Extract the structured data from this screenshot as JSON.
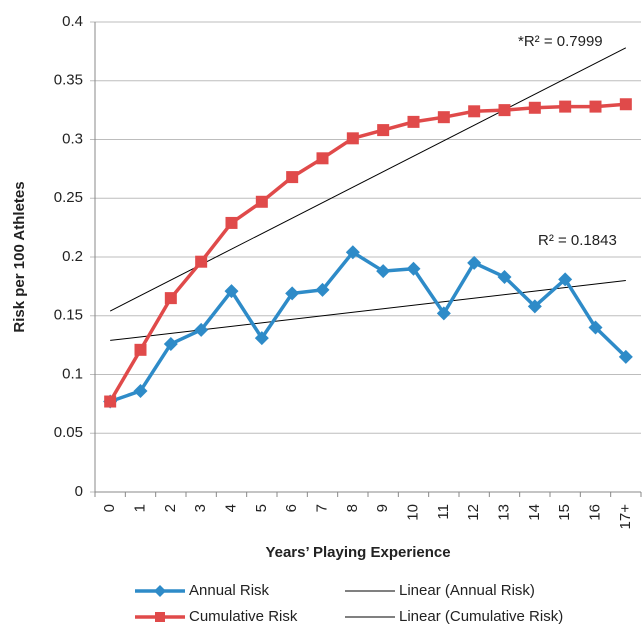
{
  "chart_data": {
    "type": "line",
    "y_label": "Risk per 100 Athletes",
    "x_label": "Years’ Playing Experience",
    "categories": [
      "0",
      "1",
      "2",
      "3",
      "4",
      "5",
      "6",
      "7",
      "8",
      "9",
      "10",
      "11",
      "12",
      "13",
      "14",
      "15",
      "16",
      "17+"
    ],
    "series": [
      {
        "name": "Annual Risk",
        "color": "#2e8bc8",
        "marker": "diamond",
        "values": [
          0.077,
          0.086,
          0.126,
          0.138,
          0.171,
          0.131,
          0.169,
          0.172,
          0.204,
          0.188,
          0.19,
          0.152,
          0.195,
          0.183,
          0.158,
          0.181,
          0.14,
          0.115
        ]
      },
      {
        "name": "Cumulative Risk",
        "color": "#e04a4a",
        "marker": "square",
        "values": [
          0.077,
          0.121,
          0.165,
          0.196,
          0.229,
          0.247,
          0.268,
          0.284,
          0.301,
          0.308,
          0.315,
          0.319,
          0.324,
          0.325,
          0.327,
          0.328,
          0.328,
          0.33
        ]
      }
    ],
    "trendlines": [
      {
        "name": "Linear (Annual Risk)",
        "color": "#000000",
        "values": [
          0.129,
          0.18
        ],
        "annotation": "R² = 0.1843"
      },
      {
        "name": "Linear (Cumulative Risk)",
        "color": "#000000",
        "values": [
          0.154,
          0.378
        ],
        "annotation": "*R² = 0.7999"
      }
    ],
    "ylim": [
      0,
      0.4
    ],
    "yticks": [
      0,
      0.05,
      0.1,
      0.15,
      0.2,
      0.25,
      0.3,
      0.35,
      0.4
    ],
    "grid": true
  }
}
